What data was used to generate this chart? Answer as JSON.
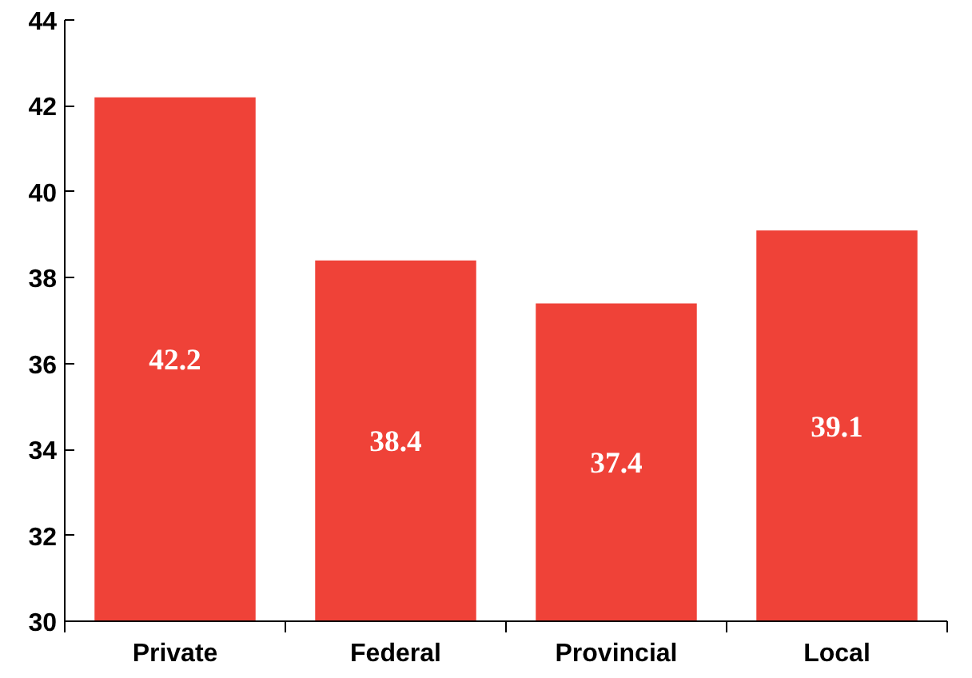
{
  "chart_data": {
    "type": "bar",
    "categories": [
      "Private",
      "Federal",
      "Provincial",
      "Local"
    ],
    "values": [
      42.2,
      38.4,
      37.4,
      39.1
    ],
    "color": "#ef4238",
    "ylim": [
      30,
      44
    ],
    "yticks": [
      30,
      32,
      34,
      36,
      38,
      40,
      42,
      44
    ],
    "grid": false,
    "data_labels": true
  }
}
